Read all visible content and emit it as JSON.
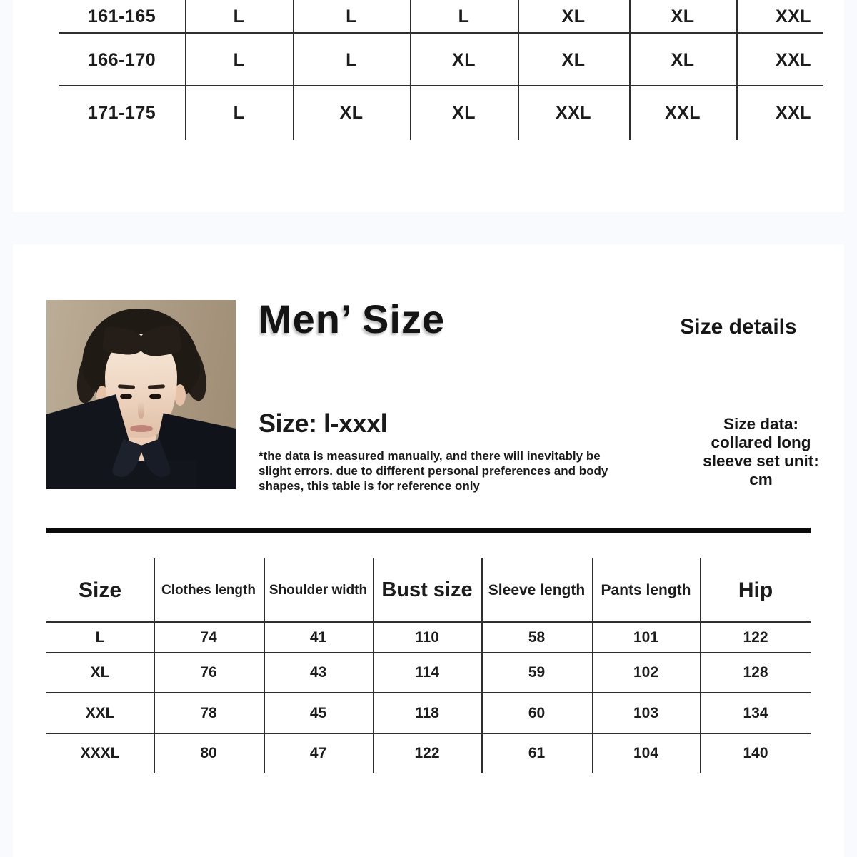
{
  "theme": {
    "page_bg": "#f8fafd",
    "card_bg": "#ffffff",
    "line_color": "#2e2e2e",
    "bar_color": "#0a0a0a",
    "text_color": "#1c1c1c"
  },
  "top_table": {
    "rows": [
      {
        "label": "161-165",
        "values": [
          "L",
          "L",
          "L",
          "XL",
          "XL",
          "XXL"
        ]
      },
      {
        "label": "166-170",
        "values": [
          "L",
          "L",
          "XL",
          "XL",
          "XL",
          "XXL"
        ]
      },
      {
        "label": "171-175",
        "values": [
          "L",
          "XL",
          "XL",
          "XXL",
          "XXL",
          "XXL"
        ]
      }
    ]
  },
  "size_section": {
    "title": "Men’ Size",
    "details_heading": "Size details",
    "subtitle": "Size: l-xxxl",
    "disclaimer": "*the data is measured manually, and there will inevitably be\nslight errors. due to different personal preferences and body\nshapes, this table is for reference only",
    "unit_note": "Size data:\ncollared long\nsleeve set unit:\ncm",
    "photo_alt": "portrait of man with dark hair in dark collared shirt"
  },
  "size_table": {
    "headers": [
      "Size",
      "Clothes length",
      "Shoulder width",
      "Bust size",
      "Sleeve length",
      "Pants length",
      "Hip"
    ],
    "rows": [
      {
        "size": "L",
        "values": [
          "74",
          "41",
          "110",
          "58",
          "101",
          "122"
        ]
      },
      {
        "size": "XL",
        "values": [
          "76",
          "43",
          "114",
          "59",
          "102",
          "128"
        ]
      },
      {
        "size": "XXL",
        "values": [
          "78",
          "45",
          "118",
          "60",
          "103",
          "134"
        ]
      },
      {
        "size": "XXXL",
        "values": [
          "80",
          "47",
          "122",
          "61",
          "104",
          "140"
        ]
      }
    ]
  }
}
